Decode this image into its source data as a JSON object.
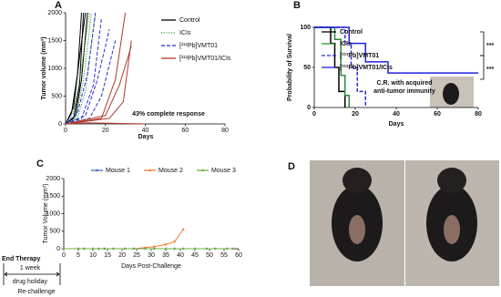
{
  "chart_data": [
    {
      "panel": "A",
      "type": "line",
      "x_label": "Days",
      "y_label": "Tumor volume (mm³)",
      "xlim": [
        0,
        80
      ],
      "xticks": [
        0,
        20,
        40,
        60,
        80
      ],
      "ylim": [
        0,
        2000
      ],
      "yticks": [
        0,
        500,
        1000,
        1500,
        2000
      ],
      "legend": "upper right",
      "annotations": [
        "43% complete response"
      ],
      "series": [
        {
          "name": "Control",
          "color": "#000000",
          "dash": "solid",
          "lines": [
            {
              "x": [
                0,
                4,
                7,
                9
              ],
              "values": [
                0,
                100,
                700,
                2000
              ]
            },
            {
              "x": [
                0,
                3,
                6,
                8
              ],
              "values": [
                0,
                200,
                900,
                2000
              ]
            },
            {
              "x": [
                0,
                5,
                8,
                11
              ],
              "values": [
                0,
                150,
                800,
                2000
              ]
            },
            {
              "x": [
                0,
                4,
                7,
                10
              ],
              "values": [
                0,
                300,
                1200,
                2000
              ]
            }
          ]
        },
        {
          "name": "ICIs",
          "color": "#2e9a3a",
          "dash": "dotted",
          "lines": [
            {
              "x": [
                0,
                5,
                9,
                13
              ],
              "values": [
                0,
                100,
                800,
                2000
              ]
            },
            {
              "x": [
                0,
                6,
                10,
                15
              ],
              "values": [
                0,
                100,
                600,
                2000
              ]
            },
            {
              "x": [
                0,
                4,
                8,
                12
              ],
              "values": [
                0,
                200,
                1000,
                2000
              ]
            }
          ]
        },
        {
          "name": "[²¹²Pb]VMT01",
          "color": "#2b2bd6",
          "dash": "dashed",
          "lines": [
            {
              "x": [
                0,
                8,
                14,
                18
              ],
              "values": [
                0,
                100,
                700,
                1900
              ]
            },
            {
              "x": [
                0,
                10,
                16,
                22
              ],
              "values": [
                0,
                150,
                800,
                1700
              ]
            },
            {
              "x": [
                0,
                12,
                18,
                25
              ],
              "values": [
                0,
                100,
                500,
                1500
              ]
            },
            {
              "x": [
                0,
                6,
                11,
                15
              ],
              "values": [
                0,
                200,
                900,
                2000
              ]
            }
          ]
        },
        {
          "name": "[²¹²Pb]VMT01/ICIs",
          "color": "#b03a2e",
          "dash": "solid",
          "lines": [
            {
              "x": [
                0,
                18,
                25,
                30
              ],
              "values": [
                0,
                100,
                800,
                2000
              ]
            },
            {
              "x": [
                0,
                20,
                27,
                33
              ],
              "values": [
                0,
                150,
                700,
                1400
              ]
            },
            {
              "x": [
                0,
                22,
                29,
                33
              ],
              "values": [
                0,
                100,
                400,
                1500
              ]
            },
            {
              "x": [
                0,
                10,
                40
              ],
              "values": [
                0,
                20,
                0
              ]
            }
          ]
        }
      ]
    },
    {
      "panel": "B",
      "type": "step",
      "x_label": "Days",
      "y_label": "Probability of Survival",
      "xlim": [
        0,
        80
      ],
      "xticks": [
        0,
        20,
        40,
        60,
        80
      ],
      "ylim": [
        0,
        100
      ],
      "yticks": [
        0,
        50,
        100
      ],
      "legend": "upper left",
      "significance": [
        "***",
        "***"
      ],
      "annotations": [
        "C.R. with acquired",
        "anti-tumor immunity"
      ],
      "series": [
        {
          "name": "Control",
          "color": "#000000",
          "dash": "solid",
          "x": [
            0,
            8,
            10,
            12,
            15
          ],
          "values": [
            100,
            80,
            50,
            20,
            0
          ]
        },
        {
          "name": "ICIs",
          "color": "#2e8b3a",
          "dash": "solid",
          "x": [
            0,
            10,
            13,
            15,
            17
          ],
          "values": [
            100,
            85,
            40,
            15,
            0
          ]
        },
        {
          "name": "[²¹²Pb]VMT01",
          "color": "#2b2bd6",
          "dash": "dashed",
          "x": [
            0,
            15,
            18,
            21,
            25
          ],
          "values": [
            100,
            80,
            50,
            20,
            0
          ]
        },
        {
          "name": "[²¹²Pb]VMT01/ICIs",
          "color": "#2020e0",
          "dash": "solid",
          "x": [
            0,
            17,
            25,
            36,
            80
          ],
          "values": [
            100,
            80,
            57,
            43,
            43
          ]
        }
      ]
    },
    {
      "panel": "C",
      "type": "line",
      "x_label": "Days Post-Challenge",
      "y_label": "Tumor Volume (mm³)",
      "xlim": [
        0,
        60
      ],
      "xticks": [
        0,
        5,
        10,
        15,
        20,
        25,
        30,
        35,
        40,
        45,
        50,
        55,
        60
      ],
      "ylim": [
        0,
        2000
      ],
      "yticks": [
        0,
        500,
        1000,
        1500,
        2000
      ],
      "legend": "top",
      "annotations": [
        "End Therapy",
        "1 week",
        "drug holiday",
        "Re-challenge"
      ],
      "x": [
        0,
        5,
        7,
        10,
        12,
        14,
        17,
        21,
        24,
        28,
        31,
        35,
        38,
        41,
        45,
        49,
        52,
        56,
        58
      ],
      "series": [
        {
          "name": "Mouse 1",
          "color": "#4472c4",
          "dash": "solid",
          "values": [
            0,
            0,
            0,
            0,
            0,
            0,
            0,
            0,
            0,
            0,
            0,
            0,
            0,
            0,
            0,
            0,
            0,
            0,
            0
          ]
        },
        {
          "name": "Mouse 2",
          "color": "#ed7d31",
          "dash": "solid",
          "values": [
            0,
            0,
            0,
            0,
            0,
            0,
            0,
            0,
            0,
            30,
            60,
            120,
            200,
            550,
            null,
            null,
            null,
            null,
            null
          ]
        },
        {
          "name": "Mouse 3",
          "color": "#70ad47",
          "dash": "solid",
          "values": [
            0,
            0,
            0,
            0,
            0,
            0,
            0,
            0,
            0,
            0,
            0,
            0,
            0,
            0,
            0,
            0,
            0,
            0,
            0
          ]
        }
      ]
    }
  ],
  "photo_panel": {
    "panel": "D"
  }
}
